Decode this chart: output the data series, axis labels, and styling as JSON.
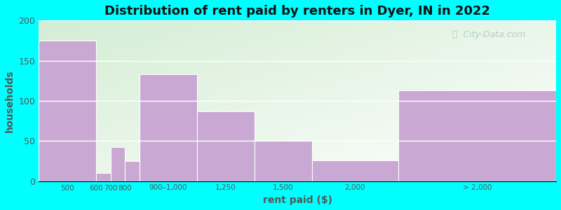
{
  "title": "Distribution of rent paid by renters in Dyer, IN in 2022",
  "xlabel": "rent paid ($)",
  "ylabel": "households",
  "background_color": "#00FFFF",
  "bar_color": "#c9a8d4",
  "values": [
    175,
    10,
    42,
    25,
    133,
    87,
    50,
    26,
    113
  ],
  "ylim": [
    0,
    200
  ],
  "yticks": [
    0,
    50,
    100,
    150,
    200
  ],
  "bar_lefts": [
    0.0,
    1.0,
    1.25,
    1.5,
    1.75,
    2.75,
    3.75,
    4.75,
    6.25
  ],
  "bar_widths": [
    1.0,
    0.25,
    0.25,
    0.25,
    1.0,
    1.0,
    1.0,
    1.5,
    2.75
  ],
  "tick_positions": [
    0.5,
    1.0,
    1.25,
    1.5,
    2.25,
    3.25,
    4.25,
    5.5,
    7.625
  ],
  "categories": [
    "500",
    "600",
    "700",
    "800",
    "900–1,000",
    "1,250",
    "1,500",
    "2,000",
    "> 2,000"
  ],
  "xlim": [
    0,
    9.0
  ],
  "watermark": "ⓘ  City-Data.com",
  "plot_bg_top_left": "#d4ecd4",
  "plot_bg_bottom_right": "#f0f8ff"
}
